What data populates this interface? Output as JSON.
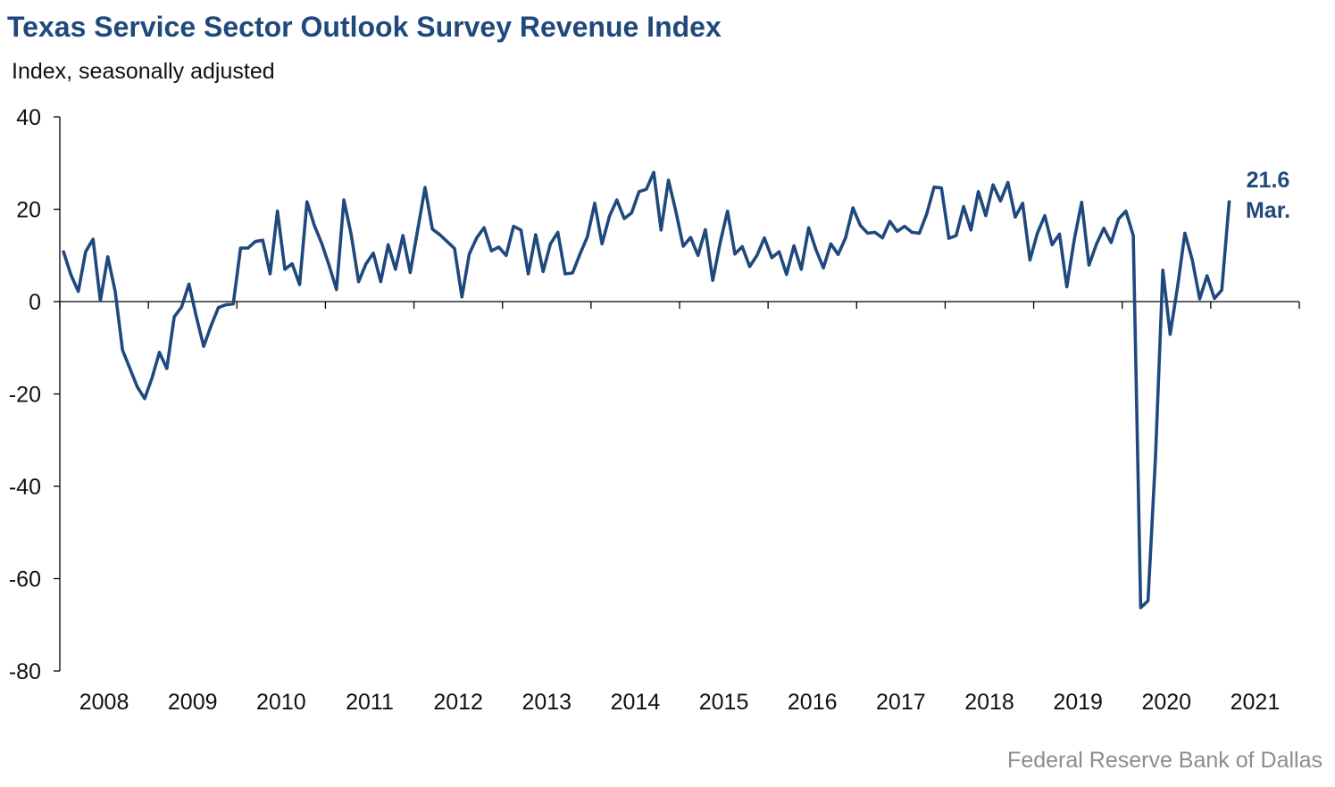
{
  "chart_data": {
    "type": "line",
    "title": "Texas Service Sector Outlook Survey Revenue Index",
    "subtitle": "Index, seasonally adjusted",
    "source": "Federal Reserve Bank of Dallas",
    "ylim": [
      -80,
      40
    ],
    "yticks": [
      40,
      20,
      0,
      -20,
      -40,
      -60,
      -80
    ],
    "ytick_labels": [
      "40",
      "20",
      "0",
      "-20",
      "-40",
      "-60",
      "-80"
    ],
    "xlim": [
      "2008-01",
      "2021-12"
    ],
    "year_labels": [
      "2008",
      "2009",
      "2010",
      "2011",
      "2012",
      "2013",
      "2014",
      "2015",
      "2016",
      "2017",
      "2018",
      "2019",
      "2020",
      "2021"
    ],
    "grid": false,
    "line_color": "#1f497d",
    "series": [
      {
        "start": "2008-01",
        "frequency": "monthly",
        "values": [
          10.8,
          5.8,
          2.2,
          10.8,
          13.5,
          0.2,
          9.7,
          2.2,
          -10.5,
          -14.5,
          -18.5,
          -21.0,
          -16.5,
          -11.0,
          -14.5,
          -3.3,
          -1.2,
          3.8,
          -3.2,
          -9.7,
          -5.2,
          -1.3,
          -0.7,
          -0.5,
          11.6,
          11.6,
          13.0,
          13.3,
          6.0,
          19.6,
          7.0,
          8.2,
          3.7,
          21.6,
          16.5,
          12.6,
          7.8,
          2.6,
          22.0,
          14.5,
          4.3,
          8.2,
          10.5,
          4.3,
          12.3,
          7.0,
          14.3,
          6.3,
          15.5,
          24.7,
          15.7,
          14.5,
          13.0,
          11.5,
          1.0,
          10.3,
          13.8,
          16.0,
          11.0,
          11.8,
          10.0,
          16.3,
          15.5,
          6.0,
          14.5,
          6.5,
          12.5,
          15.0,
          6.0,
          6.2,
          10.3,
          14.0,
          21.3,
          12.5,
          18.5,
          22.0,
          18.0,
          19.2,
          23.8,
          24.3,
          28.0,
          15.5,
          26.3,
          19.5,
          12.0,
          13.9,
          10.0,
          15.6,
          4.6,
          12.7,
          19.6,
          10.3,
          11.9,
          7.6,
          10.0,
          13.8,
          9.5,
          10.8,
          5.9,
          12.1,
          7.0,
          16.0,
          11.2,
          7.3,
          12.5,
          10.2,
          13.8,
          20.3,
          16.5,
          14.8,
          15.0,
          13.8,
          17.4,
          15.2,
          16.3,
          15.0,
          14.8,
          19.0,
          24.8,
          24.6,
          13.7,
          14.3,
          20.6,
          15.5,
          23.8,
          18.6,
          25.3,
          21.8,
          25.8,
          18.3,
          21.3,
          9.0,
          14.8,
          18.6,
          12.3,
          14.6,
          3.2,
          13.4,
          21.5,
          7.9,
          12.4,
          15.9,
          12.8,
          17.9,
          19.6,
          14.3,
          -66.3,
          -64.8,
          -34.0,
          6.8,
          -7.1,
          3.2,
          14.8,
          9.0,
          0.6,
          5.6,
          0.7,
          2.5,
          21.6
        ]
      }
    ],
    "annotation": {
      "value": "21.6",
      "label": "Mar."
    }
  }
}
